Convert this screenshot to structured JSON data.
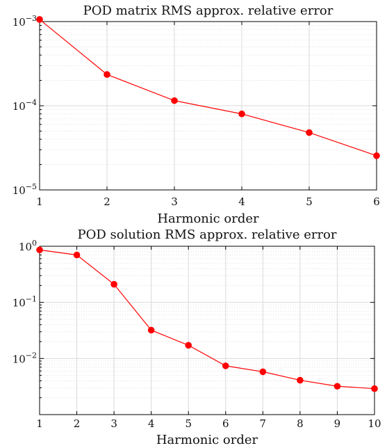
{
  "chart_data": [
    {
      "type": "line",
      "title": "POD matrix RMS approx. relative error",
      "xlabel": "Harmonic order",
      "ylabel": "",
      "yscale": "log",
      "xlim": [
        1,
        6
      ],
      "ylim": [
        1e-05,
        0.001
      ],
      "xticks": [
        "1",
        "2",
        "3",
        "4",
        "5",
        "6"
      ],
      "yticks": [
        {
          "value": 1e-05,
          "base": "10",
          "exp": "−5"
        },
        {
          "value": 0.0001,
          "base": "10",
          "exp": "−4"
        },
        {
          "value": 0.001,
          "base": "10",
          "exp": "−3"
        }
      ],
      "grid": true,
      "series": [
        {
          "color": "#ff0000",
          "x": [
            1,
            2,
            3,
            4,
            5,
            6
          ],
          "y": [
            0.00106,
            0.000235,
            0.000115,
            8e-05,
            4.8e-05,
            2.55e-05
          ]
        }
      ]
    },
    {
      "type": "line",
      "title": "POD solution RMS approx. relative error",
      "xlabel": "Harmonic order",
      "ylabel": "",
      "yscale": "log",
      "xlim": [
        1,
        10
      ],
      "ylim": [
        0.001,
        1
      ],
      "xticks": [
        "1",
        "2",
        "3",
        "4",
        "5",
        "6",
        "7",
        "8",
        "9",
        "10"
      ],
      "yticks": [
        {
          "value": 0.01,
          "base": "10",
          "exp": "−2"
        },
        {
          "value": 0.1,
          "base": "10",
          "exp": "−1"
        },
        {
          "value": 1,
          "base": "10",
          "exp": "0"
        }
      ],
      "grid": true,
      "series": [
        {
          "color": "#ff0000",
          "x": [
            1,
            2,
            3,
            4,
            5,
            6,
            7,
            8,
            9,
            10
          ],
          "y": [
            0.86,
            0.7,
            0.21,
            0.032,
            0.0172,
            0.0074,
            0.0058,
            0.0041,
            0.0032,
            0.0029
          ]
        }
      ]
    }
  ]
}
